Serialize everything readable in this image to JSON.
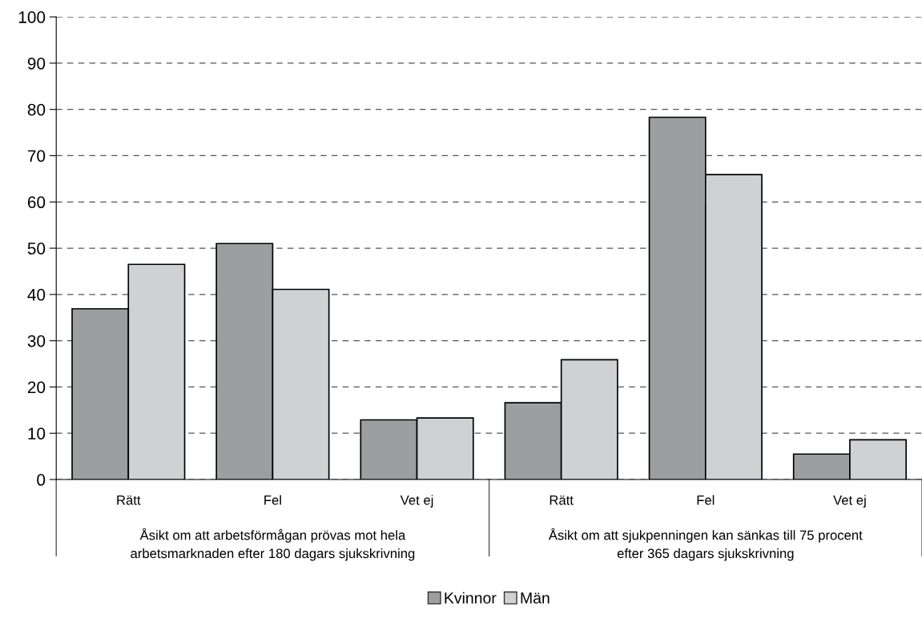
{
  "chart_data": {
    "type": "bar",
    "categories": [
      "Rätt",
      "Fel",
      "Vet ej",
      "Rätt",
      "Fel",
      "Vet ej"
    ],
    "series": [
      {
        "name": "Kvinnor",
        "color": "#9d9ea0",
        "values": [
          36.9,
          51.0,
          12.9,
          16.6,
          78.3,
          5.5
        ]
      },
      {
        "name": "Män",
        "color": "#d0d1d3",
        "values": [
          46.5,
          41.1,
          13.3,
          25.9,
          65.9,
          8.6
        ]
      }
    ],
    "annotations": [
      "Åsikt om att arbetsförmågan prövas mot hela\narbetsmarknaden efter 180 dagars sjukskrivning",
      "Åsikt om att sjukpenningen kan sänkas till 75 procent\nefter 365 dagars sjukskrivning"
    ],
    "ylim": [
      0,
      100
    ],
    "yticks": [
      0,
      10,
      20,
      30,
      40,
      50,
      60,
      70,
      80,
      90,
      100
    ],
    "grid": "y",
    "legend": "bottom"
  }
}
